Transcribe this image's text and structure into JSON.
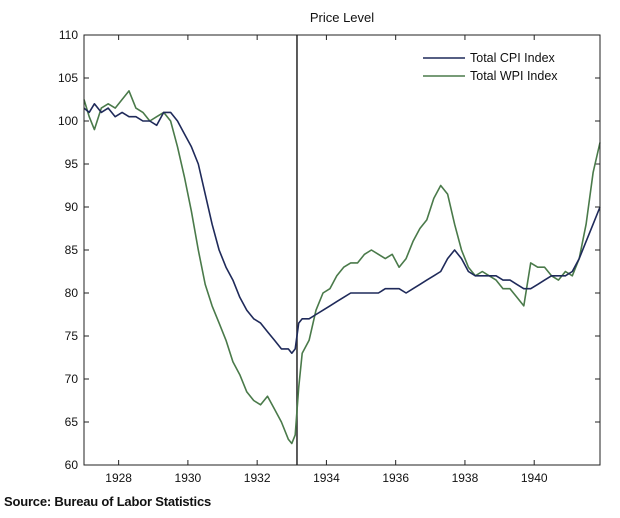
{
  "chart_data": {
    "type": "line",
    "title": "Price Level",
    "xlabel": "",
    "ylabel": "",
    "xlim": [
      1927.0,
      1941.9
    ],
    "ylim": [
      60,
      110
    ],
    "xticks": [
      1928,
      1930,
      1932,
      1934,
      1936,
      1938,
      1940
    ],
    "yticks": [
      60,
      65,
      70,
      75,
      80,
      85,
      90,
      95,
      100,
      105,
      110
    ],
    "grid": false,
    "legend_position": "top-right",
    "vline_x": 1933.15,
    "series": [
      {
        "name": "Total CPI Index",
        "color": "#1f2a5a",
        "x": [
          1927.0,
          1927.15,
          1927.3,
          1927.5,
          1927.7,
          1927.9,
          1928.1,
          1928.3,
          1928.5,
          1928.7,
          1928.9,
          1929.1,
          1929.3,
          1929.5,
          1929.7,
          1929.9,
          1930.1,
          1930.3,
          1930.5,
          1930.7,
          1930.9,
          1931.1,
          1931.3,
          1931.5,
          1931.7,
          1931.9,
          1932.1,
          1932.3,
          1932.5,
          1932.7,
          1932.9,
          1933.0,
          1933.1,
          1933.2,
          1933.3,
          1933.5,
          1933.7,
          1933.9,
          1934.1,
          1934.3,
          1934.5,
          1934.7,
          1934.9,
          1935.1,
          1935.3,
          1935.5,
          1935.7,
          1935.9,
          1936.1,
          1936.3,
          1936.5,
          1936.7,
          1936.9,
          1937.1,
          1937.3,
          1937.5,
          1937.7,
          1937.9,
          1938.1,
          1938.3,
          1938.5,
          1938.7,
          1938.9,
          1939.1,
          1939.3,
          1939.5,
          1939.7,
          1939.9,
          1940.1,
          1940.3,
          1940.5,
          1940.7,
          1940.9,
          1941.1,
          1941.3,
          1941.5,
          1941.7,
          1941.9
        ],
        "values": [
          101.5,
          101.0,
          102.0,
          101.0,
          101.5,
          100.5,
          101.0,
          100.5,
          100.5,
          100.0,
          100.0,
          99.5,
          101.0,
          101.0,
          100.0,
          98.5,
          97.0,
          95.0,
          91.5,
          88.0,
          85.0,
          83.0,
          81.5,
          79.5,
          78.0,
          77.0,
          76.5,
          75.5,
          74.5,
          73.5,
          73.5,
          73.0,
          73.5,
          76.5,
          77.0,
          77.0,
          77.5,
          78.0,
          78.5,
          79.0,
          79.5,
          80.0,
          80.0,
          80.0,
          80.0,
          80.0,
          80.5,
          80.5,
          80.5,
          80.0,
          80.5,
          81.0,
          81.5,
          82.0,
          82.5,
          84.0,
          85.0,
          84.0,
          82.5,
          82.0,
          82.0,
          82.0,
          82.0,
          81.5,
          81.5,
          81.0,
          80.5,
          80.5,
          81.0,
          81.5,
          82.0,
          82.0,
          82.0,
          82.5,
          84.0,
          86.0,
          88.0,
          90.0
        ]
      },
      {
        "name": "Total WPI Index",
        "color": "#4a7a4a",
        "x": [
          1927.0,
          1927.15,
          1927.3,
          1927.5,
          1927.7,
          1927.9,
          1928.1,
          1928.3,
          1928.5,
          1928.7,
          1928.9,
          1929.1,
          1929.3,
          1929.5,
          1929.7,
          1929.9,
          1930.1,
          1930.3,
          1930.5,
          1930.7,
          1930.9,
          1931.1,
          1931.3,
          1931.5,
          1931.7,
          1931.9,
          1932.1,
          1932.3,
          1932.5,
          1932.7,
          1932.9,
          1933.0,
          1933.1,
          1933.2,
          1933.3,
          1933.5,
          1933.7,
          1933.9,
          1934.1,
          1934.3,
          1934.5,
          1934.7,
          1934.9,
          1935.1,
          1935.3,
          1935.5,
          1935.7,
          1935.9,
          1936.1,
          1936.3,
          1936.5,
          1936.7,
          1936.9,
          1937.1,
          1937.3,
          1937.5,
          1937.7,
          1937.9,
          1938.1,
          1938.3,
          1938.5,
          1938.7,
          1938.9,
          1939.1,
          1939.3,
          1939.5,
          1939.7,
          1939.9,
          1940.1,
          1940.3,
          1940.5,
          1940.7,
          1940.9,
          1941.1,
          1941.3,
          1941.5,
          1941.7,
          1941.9
        ],
        "values": [
          102.5,
          100.5,
          99.0,
          101.5,
          102.0,
          101.5,
          102.5,
          103.5,
          101.5,
          101.0,
          100.0,
          100.5,
          101.0,
          100.0,
          97.0,
          93.5,
          89.5,
          85.0,
          81.0,
          78.5,
          76.5,
          74.5,
          72.0,
          70.5,
          68.5,
          67.5,
          67.0,
          68.0,
          66.5,
          65.0,
          63.0,
          62.5,
          63.5,
          69.0,
          73.0,
          74.5,
          78.0,
          80.0,
          80.5,
          82.0,
          83.0,
          83.5,
          83.5,
          84.5,
          85.0,
          84.5,
          84.0,
          84.5,
          83.0,
          84.0,
          86.0,
          87.5,
          88.5,
          91.0,
          92.5,
          91.5,
          88.0,
          85.0,
          83.0,
          82.0,
          82.5,
          82.0,
          81.5,
          80.5,
          80.5,
          79.5,
          78.5,
          83.5,
          83.0,
          83.0,
          82.0,
          81.5,
          82.5,
          82.0,
          84.0,
          88.0,
          94.0,
          97.5
        ]
      }
    ]
  },
  "footer": {
    "source": "Source: Bureau of Labor Statistics"
  }
}
